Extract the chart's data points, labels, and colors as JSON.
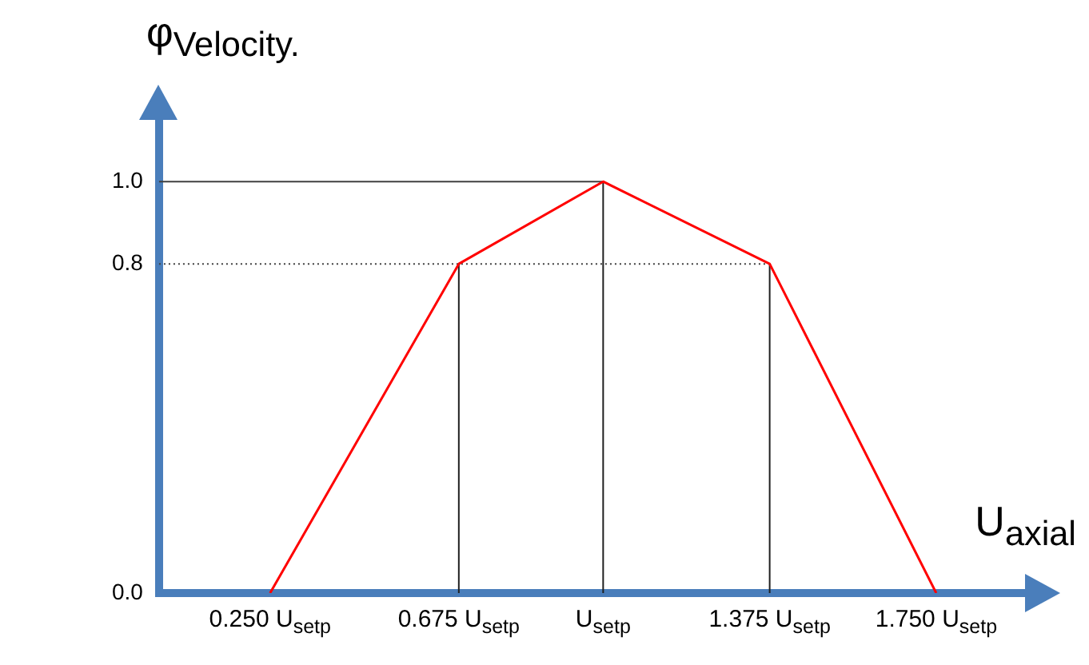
{
  "chart_data": {
    "type": "line",
    "xlabel": "U$_{axial}$",
    "ylabel": "φ$_{Velocity.}$",
    "x": [
      0.25,
      0.675,
      1,
      1.375,
      1.75
    ],
    "series": [
      {
        "color": "#ff0000",
        "values": [
          0,
          0.8,
          1,
          0.8,
          0
        ]
      }
    ],
    "xlim": [
      0,
      1.95
    ],
    "ylim": [
      0,
      1.15
    ],
    "xticks": [
      {
        "value": 0.25,
        "label": "0.250 U$_{setp}$"
      },
      {
        "value": 0.675,
        "label": "0.675 U$_{setp}$"
      },
      {
        "value": 1,
        "label": "U$_{setp}$"
      },
      {
        "value": 1.375,
        "label": "1.375 U$_{setp}$"
      },
      {
        "value": 1.75,
        "label": "1.750 U$_{setp}$"
      }
    ],
    "yticks": [
      {
        "value": 0,
        "label": "0.0"
      },
      {
        "value": 0.8,
        "label": "0.8"
      },
      {
        "value": 1,
        "label": "1.0"
      }
    ],
    "ref_lines": [
      {
        "axis": "y",
        "value": 1,
        "color": "#404040",
        "line_style": "solid"
      },
      {
        "axis": "y",
        "value": 0.8,
        "color": "#404040",
        "line_style": "dotted"
      },
      {
        "axis": "x",
        "value": 0.675,
        "color": "#202020",
        "line_style": "solid"
      },
      {
        "axis": "x",
        "value": 1,
        "color": "#202020",
        "line_style": "solid"
      },
      {
        "axis": "x",
        "value": 1.375,
        "color": "#202020",
        "line_style": "solid"
      }
    ],
    "grid": false,
    "legend": false,
    "marker": "none",
    "line_style": "solid"
  }
}
